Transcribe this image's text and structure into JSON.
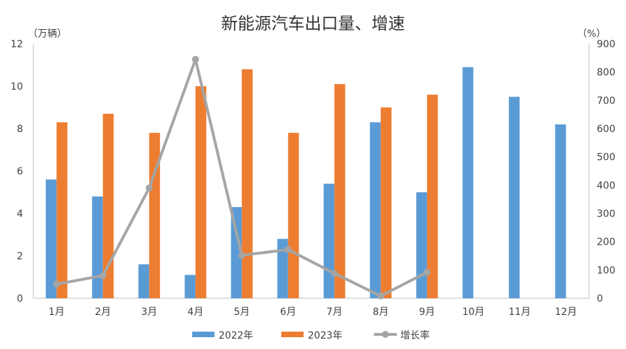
{
  "chart_data": {
    "type": "bar",
    "title": "新能源汽车出口量、增速",
    "categories": [
      "1月",
      "2月",
      "3月",
      "4月",
      "5月",
      "6月",
      "7月",
      "8月",
      "9月",
      "10月",
      "11月",
      "12月"
    ],
    "series": [
      {
        "name": "2022年",
        "type": "bar",
        "axis": "left",
        "color": "#5B9BD5",
        "values": [
          5.6,
          4.8,
          1.6,
          1.1,
          4.3,
          2.8,
          5.4,
          8.3,
          5.0,
          10.9,
          9.5,
          8.2
        ]
      },
      {
        "name": "2023年",
        "type": "bar",
        "axis": "left",
        "color": "#ED7D31",
        "values": [
          8.3,
          8.7,
          7.8,
          10.0,
          10.8,
          7.8,
          10.1,
          9.0,
          9.6,
          null,
          null,
          null
        ]
      },
      {
        "name": "增长率",
        "type": "line",
        "axis": "right",
        "color": "#A5A5A5",
        "values": [
          50,
          80,
          390,
          845,
          152,
          172,
          88,
          8,
          92,
          null,
          null,
          null
        ]
      }
    ],
    "y_left": {
      "label": "（万辆）",
      "min": 0,
      "max": 12,
      "ticks": [
        0,
        2,
        4,
        6,
        8,
        10,
        12
      ]
    },
    "y_right": {
      "label": "（%）",
      "min": 0,
      "max": 900,
      "ticks": [
        0,
        100,
        200,
        300,
        400,
        500,
        600,
        700,
        800,
        900
      ]
    },
    "grid": false,
    "legend": "bottom"
  }
}
